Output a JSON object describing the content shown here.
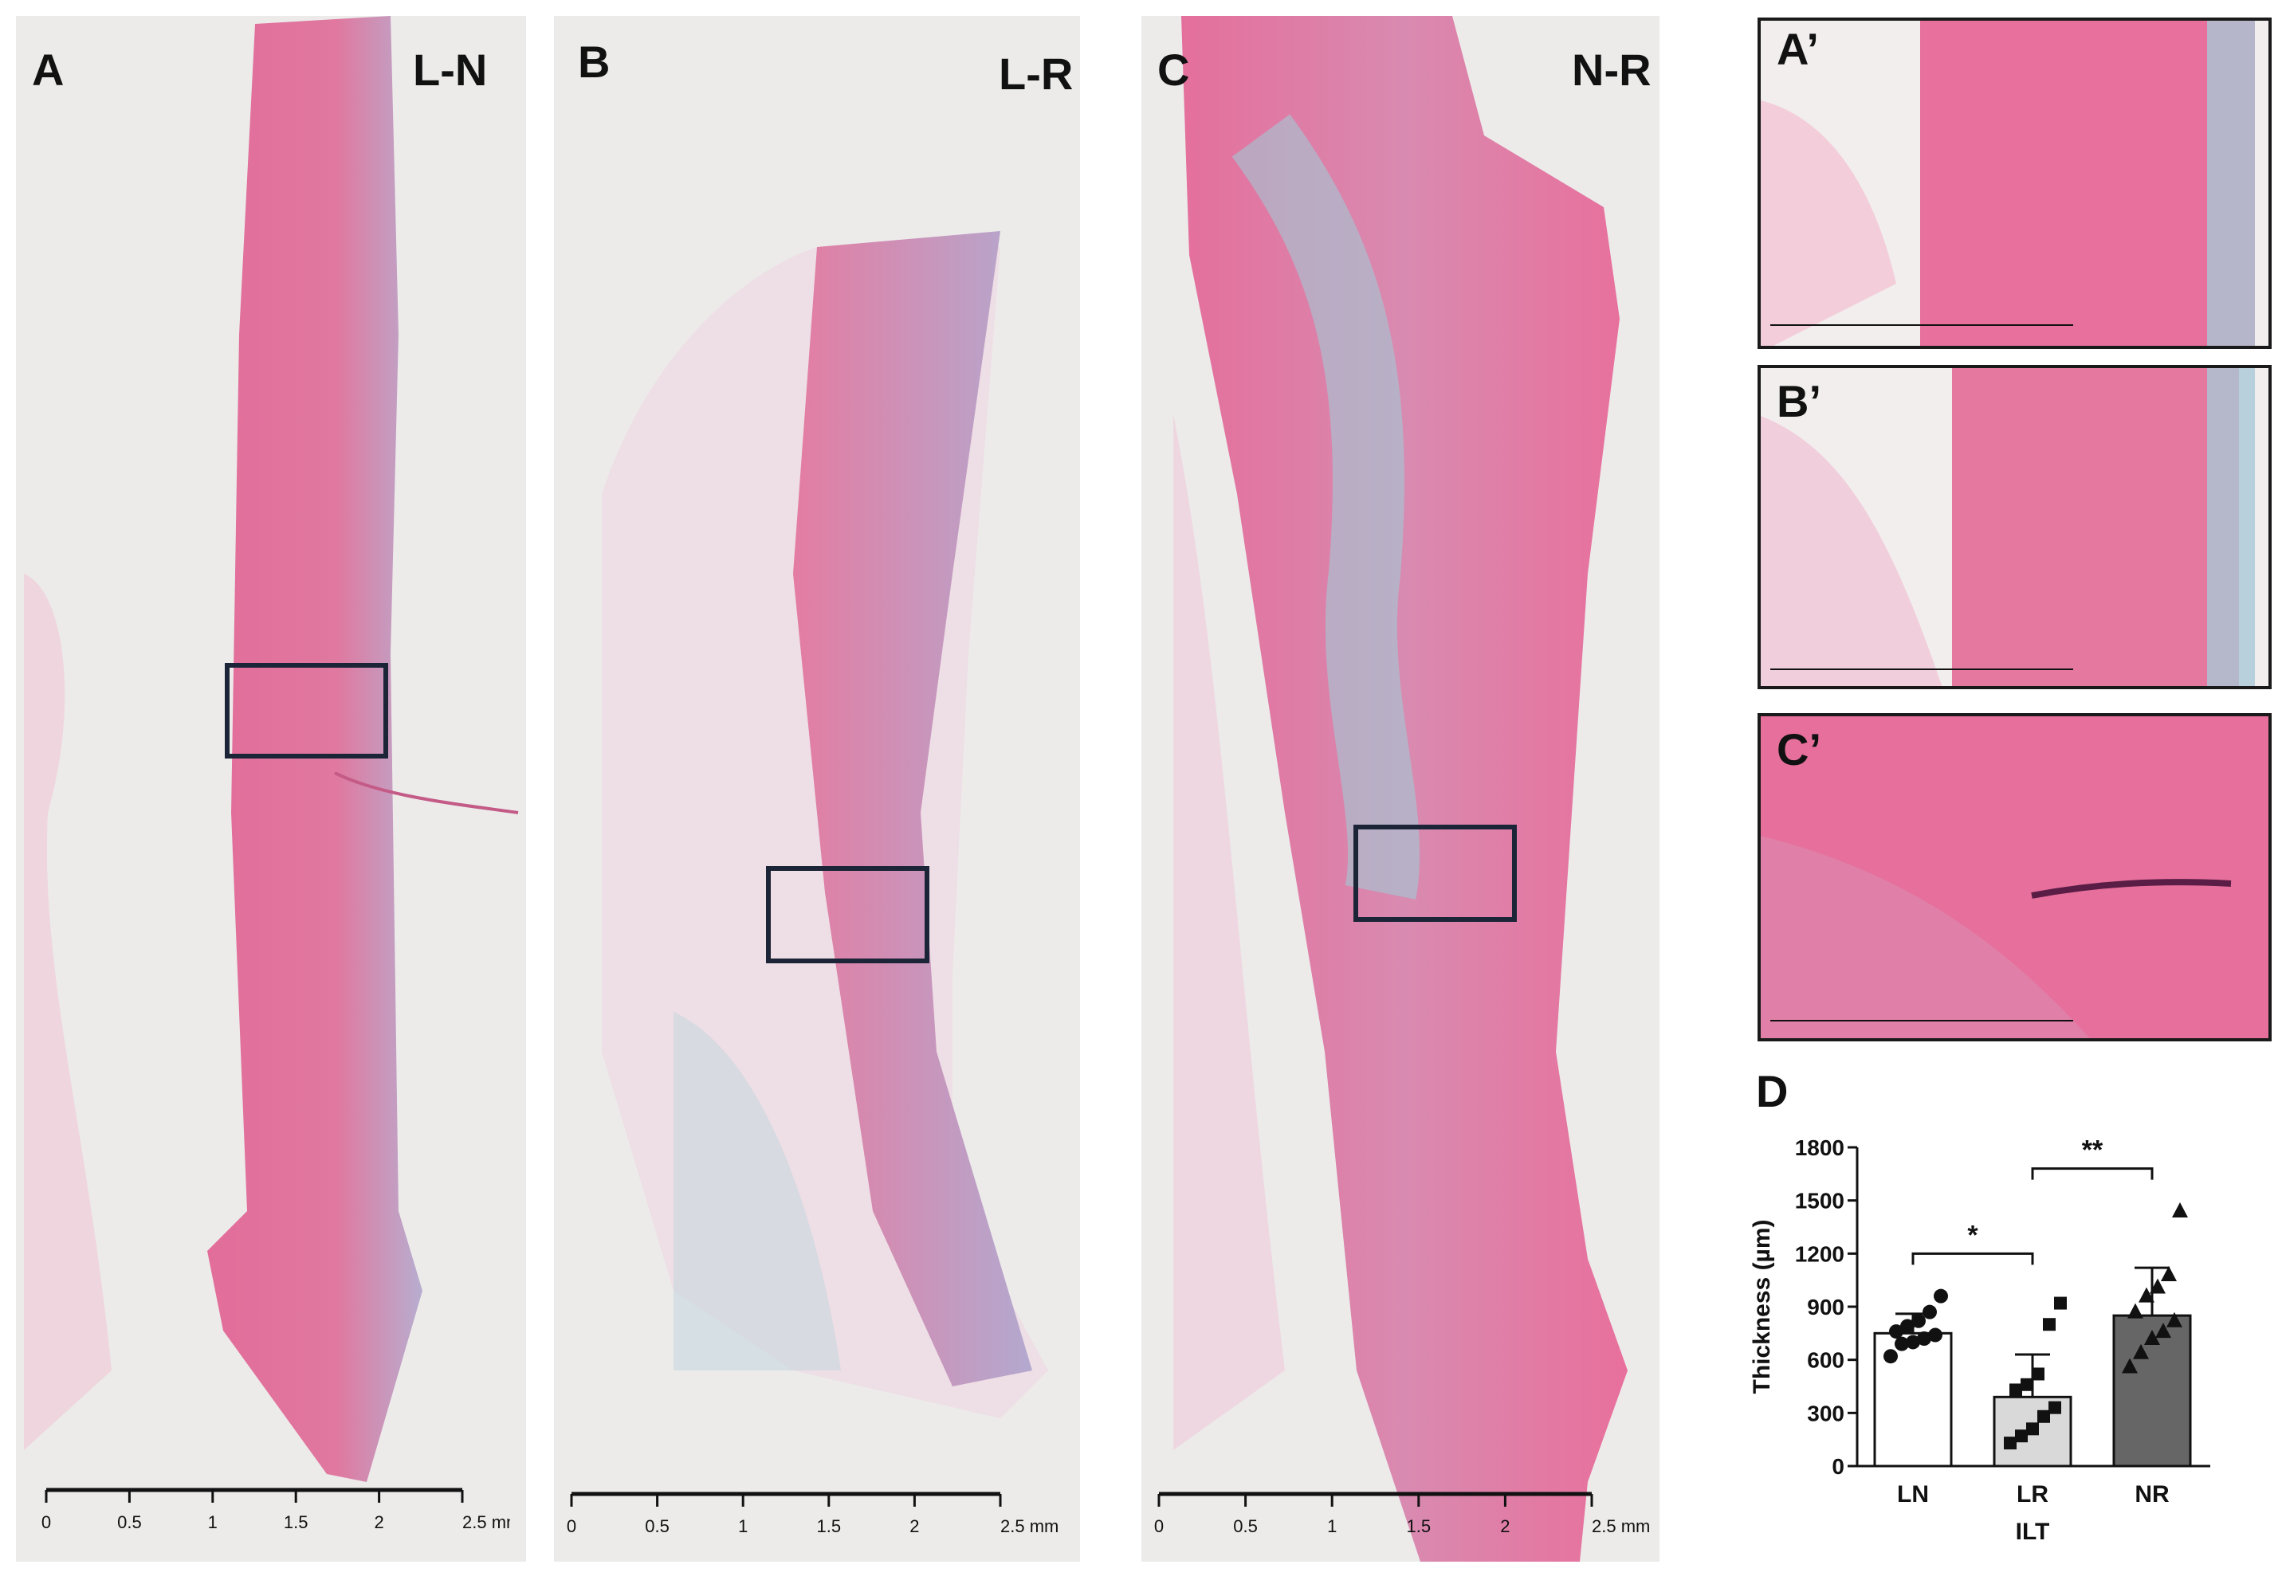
{
  "panels": [
    {
      "letter": "A",
      "name": "L-N"
    },
    {
      "letter": "B",
      "name": "L-R"
    },
    {
      "letter": "C",
      "name": "N-R"
    }
  ],
  "insets": [
    {
      "letter": "A’"
    },
    {
      "letter": "B’"
    },
    {
      "letter": "C’"
    }
  ],
  "scale_bar": {
    "ticks": [
      "0",
      "0.5",
      "1",
      "1.5",
      "2",
      "2.5 mm"
    ]
  },
  "colors": {
    "tissue_pink": "#e8729e",
    "tissue_blue": "#8cc7d4",
    "background": "#ecebea"
  },
  "chart_label": "D",
  "chart_data": {
    "type": "bar",
    "categories": [
      "LN",
      "LR",
      "NR"
    ],
    "values": [
      750,
      390,
      850
    ],
    "errors": [
      110,
      240,
      270
    ],
    "xlabel": "ILT",
    "ylabel": "Thickness (µm)",
    "ylim": [
      0,
      1800
    ],
    "yticks": [
      0,
      300,
      600,
      900,
      1200,
      1500,
      1800
    ],
    "bar_colors": [
      "#ffffff",
      "#d9d9d9",
      "#666666"
    ],
    "points": [
      [
        620,
        690,
        700,
        720,
        740,
        760,
        790,
        820,
        870,
        960
      ],
      [
        130,
        170,
        210,
        280,
        330,
        430,
        460,
        520,
        800,
        920
      ],
      [
        560,
        640,
        720,
        760,
        820,
        870,
        960,
        1010,
        1080,
        1440
      ]
    ],
    "markers": [
      "circle",
      "square",
      "triangle"
    ],
    "significance": [
      {
        "from": "LN",
        "to": "LR",
        "label": "*"
      },
      {
        "from": "LR",
        "to": "NR",
        "label": "**"
      }
    ]
  }
}
